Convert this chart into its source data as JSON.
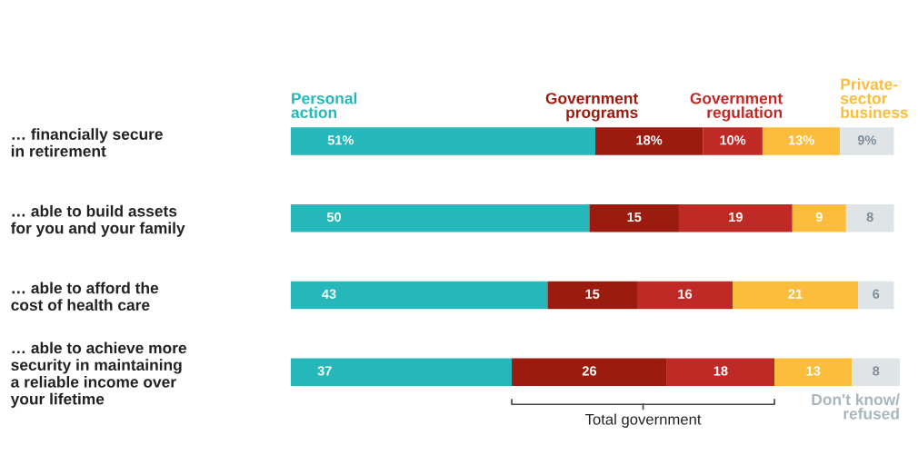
{
  "chart_data": {
    "type": "bar",
    "orientation": "horizontal",
    "stacked": true,
    "categories": [
      "… financially secure\nin retirement",
      "… able to build assets\nfor you and your family",
      "… able to afford the\ncost of health care",
      "… able to achieve more\nsecurity in maintaining\na reliable income over\nyour lifetime"
    ],
    "series": [
      {
        "name": "Personal\naction",
        "color": "#25b7b9",
        "values": [
          51,
          50,
          43,
          37
        ],
        "value_labels": [
          "51%",
          "50",
          "43",
          "37"
        ]
      },
      {
        "name": "Government\nprograms",
        "color": "#9b1b0f",
        "values": [
          18,
          15,
          15,
          26
        ],
        "value_labels": [
          "18%",
          "15",
          "15",
          "26"
        ]
      },
      {
        "name": "Government\nregulation",
        "color": "#bf2a26",
        "values": [
          10,
          19,
          16,
          18
        ],
        "value_labels": [
          "10%",
          "19",
          "16",
          "18"
        ]
      },
      {
        "name": "Private-\nsector\nbusiness",
        "color": "#fbbd3b",
        "values": [
          13,
          9,
          21,
          13
        ],
        "value_labels": [
          "13%",
          "9",
          "21",
          "13"
        ]
      },
      {
        "name": "Don't know/\nrefused",
        "color": "#dfe4e7",
        "values": [
          9,
          8,
          6,
          8
        ],
        "value_labels": [
          "9%",
          "8",
          "6",
          "8"
        ]
      }
    ],
    "annotations": [
      "Total government"
    ]
  }
}
